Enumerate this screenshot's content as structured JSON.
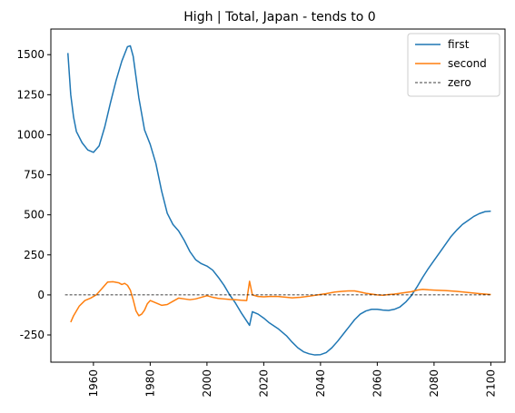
{
  "chart_data": {
    "type": "line",
    "title": "High | Total, Japan  - tends to 0",
    "xlabel": "",
    "ylabel": "",
    "xlim": [
      1945,
      2105
    ],
    "ylim": [
      -420,
      1660
    ],
    "xticks": [
      1960,
      1980,
      2000,
      2020,
      2040,
      2060,
      2080,
      2100
    ],
    "yticks": [
      -250,
      0,
      250,
      500,
      750,
      1000,
      1250,
      1500
    ],
    "grid": false,
    "legend_position": "top-right",
    "series": [
      {
        "name": "first",
        "color": "#1f77b4",
        "style": "solid",
        "points": [
          [
            1951,
            1510
          ],
          [
            1952,
            1250
          ],
          [
            1953,
            1110
          ],
          [
            1954,
            1020
          ],
          [
            1956,
            950
          ],
          [
            1958,
            905
          ],
          [
            1960,
            890
          ],
          [
            1962,
            930
          ],
          [
            1964,
            1050
          ],
          [
            1966,
            1200
          ],
          [
            1968,
            1340
          ],
          [
            1970,
            1460
          ],
          [
            1972,
            1550
          ],
          [
            1973,
            1555
          ],
          [
            1974,
            1490
          ],
          [
            1976,
            1230
          ],
          [
            1978,
            1030
          ],
          [
            1980,
            940
          ],
          [
            1982,
            820
          ],
          [
            1984,
            650
          ],
          [
            1986,
            510
          ],
          [
            1988,
            440
          ],
          [
            1990,
            400
          ],
          [
            1992,
            340
          ],
          [
            1994,
            270
          ],
          [
            1996,
            220
          ],
          [
            1998,
            195
          ],
          [
            2000,
            180
          ],
          [
            2002,
            155
          ],
          [
            2004,
            110
          ],
          [
            2006,
            60
          ],
          [
            2008,
            0
          ],
          [
            2010,
            -50
          ],
          [
            2012,
            -110
          ],
          [
            2015,
            -190
          ],
          [
            2016,
            -105
          ],
          [
            2018,
            -120
          ],
          [
            2020,
            -145
          ],
          [
            2022,
            -175
          ],
          [
            2025,
            -210
          ],
          [
            2028,
            -255
          ],
          [
            2030,
            -295
          ],
          [
            2032,
            -330
          ],
          [
            2034,
            -355
          ],
          [
            2036,
            -368
          ],
          [
            2038,
            -375
          ],
          [
            2040,
            -373
          ],
          [
            2042,
            -360
          ],
          [
            2044,
            -330
          ],
          [
            2046,
            -290
          ],
          [
            2048,
            -245
          ],
          [
            2050,
            -200
          ],
          [
            2052,
            -155
          ],
          [
            2054,
            -120
          ],
          [
            2056,
            -100
          ],
          [
            2058,
            -90
          ],
          [
            2060,
            -90
          ],
          [
            2062,
            -95
          ],
          [
            2064,
            -97
          ],
          [
            2066,
            -90
          ],
          [
            2068,
            -75
          ],
          [
            2070,
            -45
          ],
          [
            2072,
            -5
          ],
          [
            2074,
            50
          ],
          [
            2076,
            110
          ],
          [
            2078,
            165
          ],
          [
            2080,
            215
          ],
          [
            2082,
            265
          ],
          [
            2084,
            315
          ],
          [
            2086,
            365
          ],
          [
            2088,
            405
          ],
          [
            2090,
            440
          ],
          [
            2092,
            465
          ],
          [
            2094,
            490
          ],
          [
            2096,
            508
          ],
          [
            2098,
            520
          ],
          [
            2100,
            523
          ]
        ]
      },
      {
        "name": "second",
        "color": "#ff7f0e",
        "style": "solid",
        "points": [
          [
            1952,
            -170
          ],
          [
            1953,
            -130
          ],
          [
            1955,
            -70
          ],
          [
            1957,
            -35
          ],
          [
            1959,
            -20
          ],
          [
            1961,
            0
          ],
          [
            1963,
            40
          ],
          [
            1965,
            80
          ],
          [
            1967,
            82
          ],
          [
            1969,
            75
          ],
          [
            1970,
            65
          ],
          [
            1971,
            72
          ],
          [
            1972,
            60
          ],
          [
            1973,
            30
          ],
          [
            1974,
            -30
          ],
          [
            1975,
            -100
          ],
          [
            1976,
            -130
          ],
          [
            1977,
            -120
          ],
          [
            1978,
            -95
          ],
          [
            1979,
            -55
          ],
          [
            1980,
            -35
          ],
          [
            1982,
            -50
          ],
          [
            1984,
            -65
          ],
          [
            1986,
            -60
          ],
          [
            1988,
            -40
          ],
          [
            1990,
            -20
          ],
          [
            1992,
            -25
          ],
          [
            1994,
            -30
          ],
          [
            1996,
            -25
          ],
          [
            1998,
            -15
          ],
          [
            2000,
            -5
          ],
          [
            2002,
            -15
          ],
          [
            2004,
            -22
          ],
          [
            2006,
            -25
          ],
          [
            2008,
            -28
          ],
          [
            2010,
            -30
          ],
          [
            2012,
            -33
          ],
          [
            2014,
            -35
          ],
          [
            2015,
            85
          ],
          [
            2016,
            0
          ],
          [
            2018,
            -10
          ],
          [
            2020,
            -12
          ],
          [
            2022,
            -10
          ],
          [
            2025,
            -10
          ],
          [
            2028,
            -15
          ],
          [
            2030,
            -18
          ],
          [
            2033,
            -15
          ],
          [
            2036,
            -8
          ],
          [
            2039,
            0
          ],
          [
            2042,
            8
          ],
          [
            2045,
            18
          ],
          [
            2048,
            23
          ],
          [
            2050,
            25
          ],
          [
            2052,
            25
          ],
          [
            2054,
            18
          ],
          [
            2056,
            10
          ],
          [
            2058,
            5
          ],
          [
            2060,
            0
          ],
          [
            2062,
            -2
          ],
          [
            2064,
            2
          ],
          [
            2066,
            5
          ],
          [
            2068,
            10
          ],
          [
            2070,
            15
          ],
          [
            2072,
            20
          ],
          [
            2074,
            30
          ],
          [
            2076,
            35
          ],
          [
            2078,
            32
          ],
          [
            2080,
            30
          ],
          [
            2084,
            27
          ],
          [
            2088,
            22
          ],
          [
            2092,
            15
          ],
          [
            2096,
            8
          ],
          [
            2100,
            2
          ]
        ]
      },
      {
        "name": "zero",
        "color": "#000000",
        "style": "dashed",
        "points": [
          [
            1950,
            0
          ],
          [
            2100,
            0
          ]
        ]
      }
    ]
  }
}
